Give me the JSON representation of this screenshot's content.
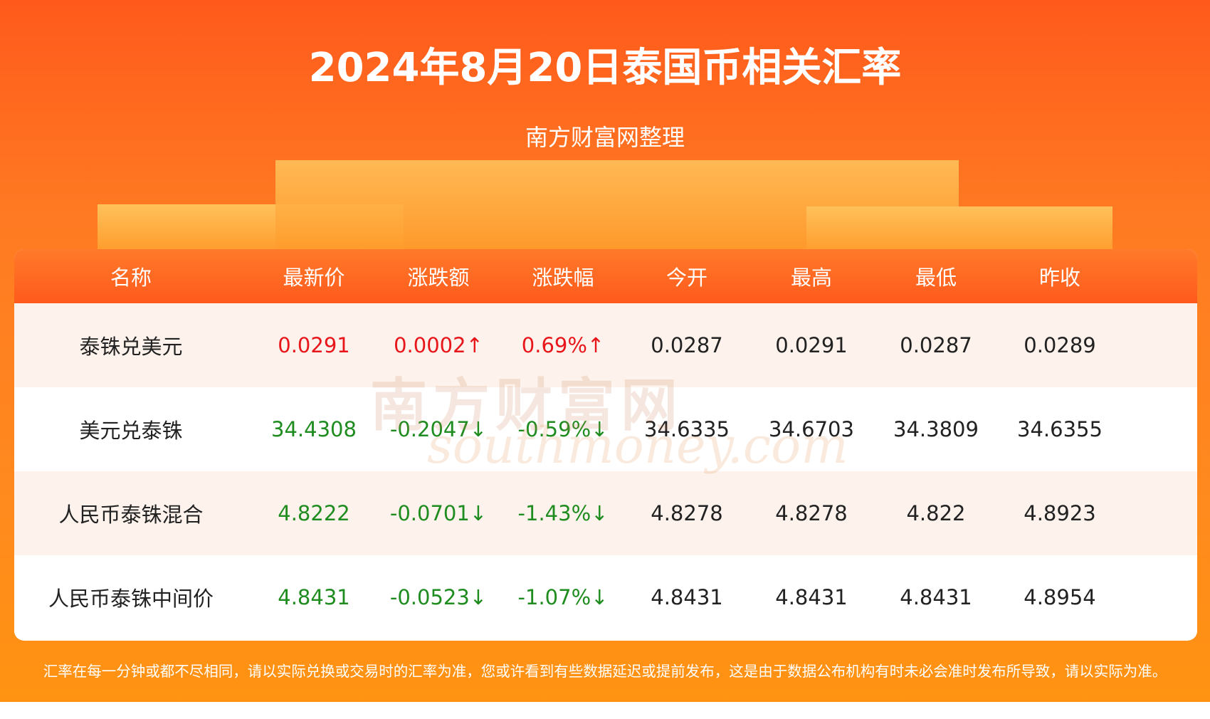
{
  "header": {
    "title": "2024年8月20日泰国币相关汇率",
    "subtitle": "南方财富网整理"
  },
  "table": {
    "columns": [
      "名称",
      "最新价",
      "涨跌额",
      "涨跌幅",
      "今开",
      "最高",
      "最低",
      "昨收"
    ],
    "rows": [
      [
        "泰铢兑美元",
        "0.0291",
        "0.0002↑",
        "0.69%↑",
        "0.0287",
        "0.0291",
        "0.0287",
        "0.0289"
      ],
      [
        "美元兑泰铢",
        "34.4308",
        "-0.2047↓",
        "-0.59%↓",
        "34.6335",
        "34.6703",
        "34.3809",
        "34.6355"
      ],
      [
        "人民币泰铢混合",
        "4.8222",
        "-0.0701↓",
        "-1.43%↓",
        "4.8278",
        "4.8278",
        "4.822",
        "4.8923"
      ],
      [
        "人民币泰铢中间价",
        "4.8431",
        "-0.0523↓",
        "-1.07%↓",
        "4.8431",
        "4.8431",
        "4.8431",
        "4.8954"
      ]
    ],
    "row_colors": [
      "#e8151b",
      "#1f8c1f",
      "#1f8c1f",
      "#1f8c1f"
    ]
  },
  "watermark": {
    "name": "南方财富网",
    "domain": "southmoney.com"
  },
  "footer": {
    "note": "汇率在每一分钟或都不尽相同，请以实际兑换或交易时的汇率为准，您或许看到有些数据延迟或提前发布，这是由于数据公布机构有时未必会准时发布所导致，请以实际为准。"
  }
}
